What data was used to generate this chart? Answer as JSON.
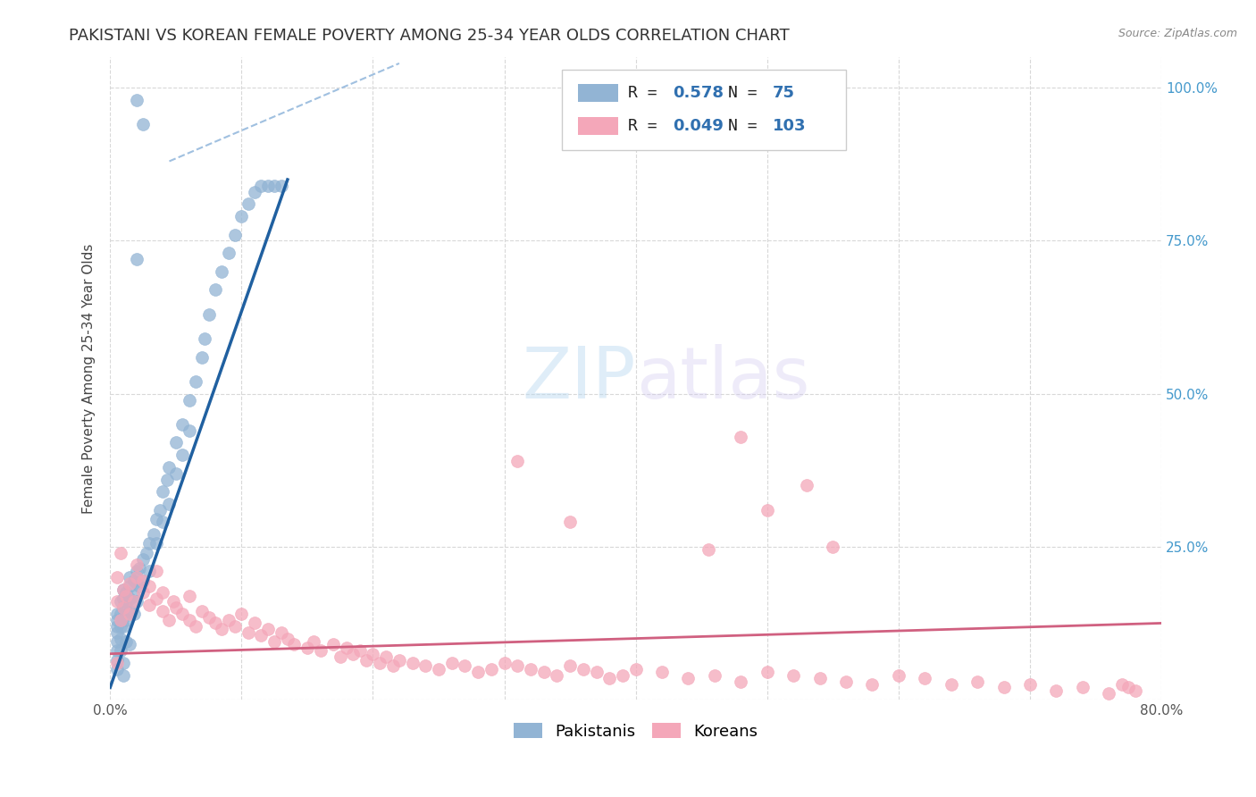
{
  "title": "PAKISTANI VS KOREAN FEMALE POVERTY AMONG 25-34 YEAR OLDS CORRELATION CHART",
  "source": "Source: ZipAtlas.com",
  "ylabel": "Female Poverty Among 25-34 Year Olds",
  "xlim": [
    0.0,
    0.8
  ],
  "ylim": [
    0.0,
    1.05
  ],
  "pakistani_color": "#92b4d4",
  "korean_color": "#f4a7b9",
  "pakistani_R": 0.578,
  "pakistani_N": 75,
  "korean_R": 0.049,
  "korean_N": 103,
  "legend_R_color": "#3070b0",
  "bg_color": "#ffffff",
  "grid_color": "#d8d8d8",
  "trend_line_pakistani_color": "#2060a0",
  "trend_line_korean_color": "#d06080",
  "title_fontsize": 13,
  "axis_label_fontsize": 11,
  "tick_fontsize": 11,
  "legend_fontsize": 13,
  "pakistani_scatter_x": [
    0.02,
    0.025,
    0.005,
    0.005,
    0.005,
    0.005,
    0.005,
    0.005,
    0.005,
    0.005,
    0.008,
    0.008,
    0.008,
    0.008,
    0.008,
    0.01,
    0.01,
    0.01,
    0.01,
    0.01,
    0.01,
    0.012,
    0.012,
    0.012,
    0.012,
    0.015,
    0.015,
    0.015,
    0.015,
    0.015,
    0.018,
    0.018,
    0.018,
    0.02,
    0.02,
    0.02,
    0.022,
    0.022,
    0.025,
    0.025,
    0.028,
    0.03,
    0.03,
    0.033,
    0.035,
    0.035,
    0.038,
    0.04,
    0.04,
    0.043,
    0.045,
    0.045,
    0.05,
    0.05,
    0.055,
    0.055,
    0.06,
    0.06,
    0.065,
    0.07,
    0.072,
    0.075,
    0.08,
    0.085,
    0.09,
    0.095,
    0.1,
    0.105,
    0.11,
    0.115,
    0.12,
    0.125,
    0.13,
    0.02,
    0.01
  ],
  "pakistani_scatter_y": [
    0.98,
    0.94,
    0.14,
    0.13,
    0.12,
    0.11,
    0.095,
    0.08,
    0.065,
    0.05,
    0.16,
    0.14,
    0.12,
    0.1,
    0.08,
    0.18,
    0.165,
    0.15,
    0.135,
    0.12,
    0.06,
    0.175,
    0.155,
    0.13,
    0.095,
    0.2,
    0.185,
    0.165,
    0.145,
    0.09,
    0.195,
    0.17,
    0.14,
    0.21,
    0.19,
    0.16,
    0.215,
    0.185,
    0.23,
    0.195,
    0.24,
    0.255,
    0.21,
    0.27,
    0.295,
    0.255,
    0.31,
    0.34,
    0.29,
    0.36,
    0.38,
    0.32,
    0.42,
    0.37,
    0.45,
    0.4,
    0.49,
    0.44,
    0.52,
    0.56,
    0.59,
    0.63,
    0.67,
    0.7,
    0.73,
    0.76,
    0.79,
    0.81,
    0.83,
    0.84,
    0.84,
    0.84,
    0.84,
    0.72,
    0.04
  ],
  "korean_scatter_x": [
    0.005,
    0.005,
    0.008,
    0.01,
    0.01,
    0.012,
    0.015,
    0.015,
    0.018,
    0.02,
    0.02,
    0.025,
    0.025,
    0.03,
    0.03,
    0.035,
    0.035,
    0.04,
    0.04,
    0.045,
    0.048,
    0.05,
    0.055,
    0.06,
    0.06,
    0.065,
    0.07,
    0.075,
    0.08,
    0.085,
    0.09,
    0.095,
    0.1,
    0.105,
    0.11,
    0.115,
    0.12,
    0.125,
    0.13,
    0.135,
    0.14,
    0.15,
    0.155,
    0.16,
    0.17,
    0.175,
    0.18,
    0.185,
    0.19,
    0.195,
    0.2,
    0.205,
    0.21,
    0.215,
    0.22,
    0.23,
    0.24,
    0.25,
    0.26,
    0.27,
    0.28,
    0.29,
    0.3,
    0.31,
    0.32,
    0.33,
    0.34,
    0.35,
    0.36,
    0.37,
    0.38,
    0.39,
    0.4,
    0.42,
    0.44,
    0.46,
    0.48,
    0.5,
    0.52,
    0.54,
    0.56,
    0.58,
    0.6,
    0.62,
    0.64,
    0.66,
    0.68,
    0.7,
    0.72,
    0.74,
    0.76,
    0.77,
    0.775,
    0.78,
    0.005,
    0.008,
    0.48,
    0.31,
    0.35,
    0.455,
    0.5,
    0.53,
    0.55
  ],
  "korean_scatter_y": [
    0.16,
    0.2,
    0.13,
    0.18,
    0.15,
    0.17,
    0.14,
    0.19,
    0.16,
    0.2,
    0.22,
    0.175,
    0.195,
    0.155,
    0.185,
    0.165,
    0.21,
    0.145,
    0.175,
    0.13,
    0.16,
    0.15,
    0.14,
    0.13,
    0.17,
    0.12,
    0.145,
    0.135,
    0.125,
    0.115,
    0.13,
    0.12,
    0.14,
    0.11,
    0.125,
    0.105,
    0.115,
    0.095,
    0.11,
    0.1,
    0.09,
    0.085,
    0.095,
    0.08,
    0.09,
    0.07,
    0.085,
    0.075,
    0.08,
    0.065,
    0.075,
    0.06,
    0.07,
    0.055,
    0.065,
    0.06,
    0.055,
    0.05,
    0.06,
    0.055,
    0.045,
    0.05,
    0.06,
    0.055,
    0.05,
    0.045,
    0.04,
    0.055,
    0.05,
    0.045,
    0.035,
    0.04,
    0.05,
    0.045,
    0.035,
    0.04,
    0.03,
    0.045,
    0.04,
    0.035,
    0.03,
    0.025,
    0.04,
    0.035,
    0.025,
    0.03,
    0.02,
    0.025,
    0.015,
    0.02,
    0.01,
    0.025,
    0.02,
    0.015,
    0.06,
    0.24,
    0.43,
    0.39,
    0.29,
    0.245,
    0.31,
    0.35,
    0.25
  ]
}
